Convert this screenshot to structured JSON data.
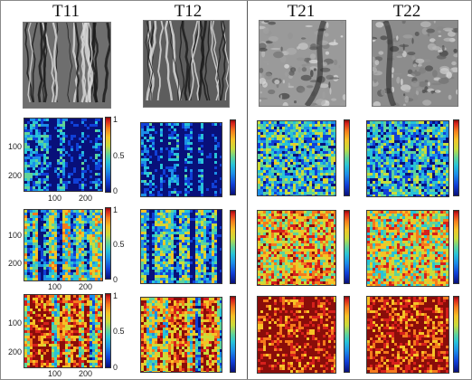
{
  "columns": [
    {
      "id": "T11",
      "title": "T11"
    },
    {
      "id": "T12",
      "title": "T12"
    },
    {
      "id": "T21",
      "title": "T21"
    },
    {
      "id": "T22",
      "title": "T22"
    }
  ],
  "rows": [
    {
      "id": "row1",
      "level": 0.18
    },
    {
      "id": "row2",
      "level": 0.5
    },
    {
      "id": "row3",
      "level": 0.86
    }
  ],
  "row_levels_by_column": {
    "row1": [
      0.2,
      0.14,
      0.34,
      0.3
    ],
    "row2": [
      0.5,
      0.4,
      0.66,
      0.6
    ],
    "row3": [
      0.86,
      0.78,
      0.93,
      0.9
    ]
  },
  "axis": {
    "y_ticks": [
      "100",
      "200"
    ],
    "x_ticks": [
      "100",
      "200"
    ],
    "colorbar_ticks": [
      "1",
      "0.5",
      "0"
    ]
  },
  "colormap": [
    "#08107a",
    "#1040d8",
    "#1c8ee8",
    "#27c3d8",
    "#5fd39a",
    "#c9dc3a",
    "#f5c326",
    "#f57a1c",
    "#d6201c",
    "#8a0d0a"
  ],
  "photo_tones": {
    "T11": "#6e6e6e",
    "T12": "#5d5d5d",
    "T21": "#9a9a9a",
    "T22": "#8c8c8c"
  }
}
